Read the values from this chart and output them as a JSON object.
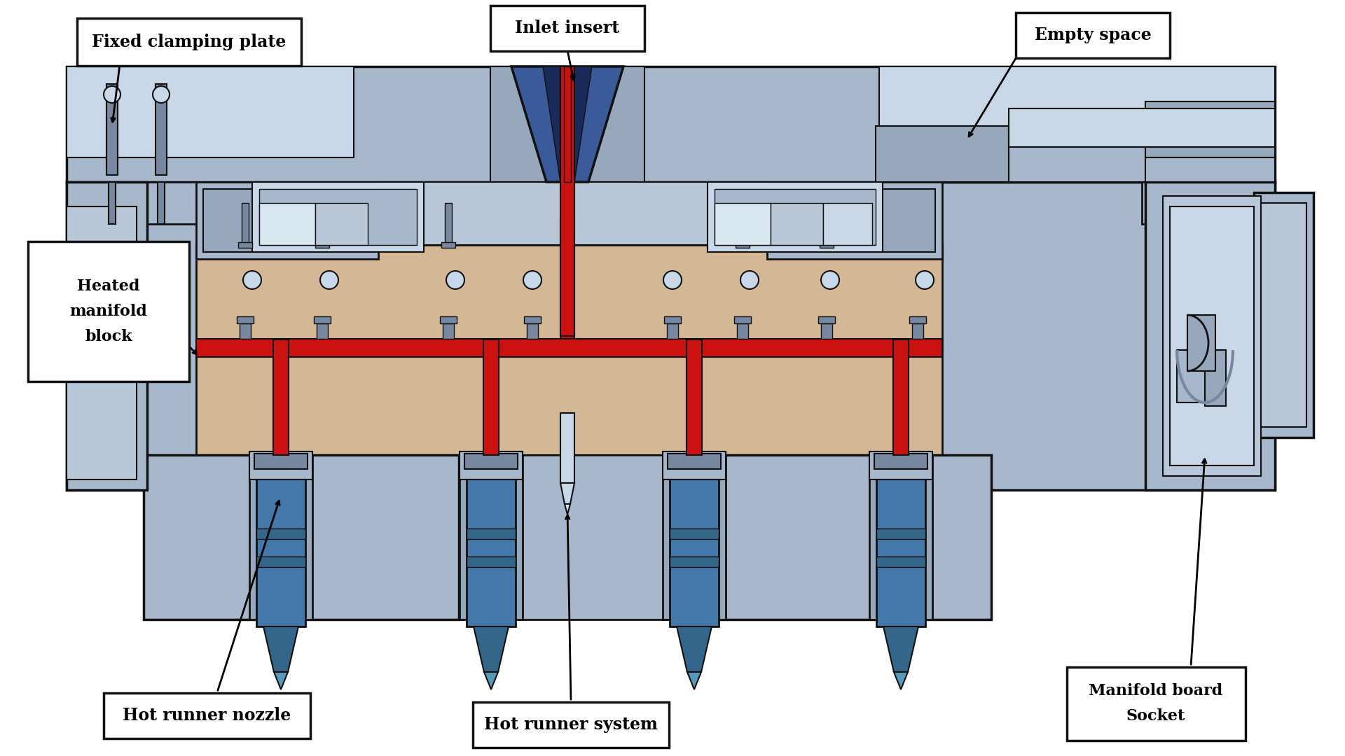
{
  "bg_color": "#ffffff",
  "sc": "#a8b8cc",
  "sc2": "#b8c8d8",
  "sc3": "#98a8bc",
  "sd": "#7888a0",
  "sl": "#c8d8e8",
  "sl2": "#d8e8f0",
  "mc": "#d4b896",
  "rc": "#cc1111",
  "bc": "#4477aa",
  "bc2": "#336688",
  "bc3": "#5599bb",
  "oc": "#111111",
  "wh": "#ffffff",
  "lfs": 17,
  "font": "DejaVu Serif",
  "labels": {
    "fcp": "Fixed clamping plate",
    "ii": "Inlet insert",
    "es": "Empty space",
    "hmb": "Heated\nmanifold\nblock",
    "hrn": "Hot runner nozzle",
    "hrs": "Hot runner system",
    "mbs": "Manifold board\nSocket"
  }
}
